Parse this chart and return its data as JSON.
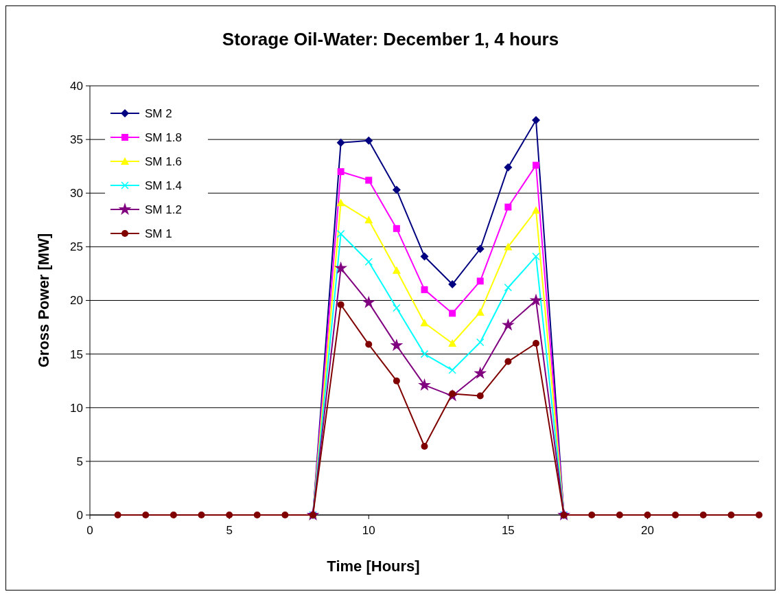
{
  "chart_data": {
    "type": "line",
    "title": "Storage Oil-Water: December 1, 4 hours",
    "xlabel": "Time [Hours]",
    "ylabel": "Gross Power [MW]",
    "x": [
      1,
      2,
      3,
      4,
      5,
      6,
      7,
      8,
      9,
      10,
      11,
      12,
      13,
      14,
      15,
      16,
      17,
      18,
      19,
      20,
      21,
      22,
      23,
      24
    ],
    "xlim": [
      0,
      24
    ],
    "xticks": [
      0,
      5,
      10,
      15,
      20
    ],
    "ylim": [
      0,
      40
    ],
    "yticks": [
      0,
      5,
      10,
      15,
      20,
      25,
      30,
      35,
      40
    ],
    "grid": "y",
    "legend": "top left",
    "series": [
      {
        "name": "SM 2",
        "color": "#000080",
        "marker": "diamond",
        "values": [
          null,
          null,
          null,
          null,
          null,
          null,
          null,
          0,
          34.7,
          34.9,
          30.3,
          24.1,
          21.5,
          24.8,
          32.4,
          36.8,
          0,
          null,
          null,
          null,
          null,
          null,
          null,
          null
        ]
      },
      {
        "name": "SM 1.8",
        "color": "#ff00ff",
        "marker": "square",
        "values": [
          null,
          null,
          null,
          null,
          null,
          null,
          null,
          0,
          32.0,
          31.2,
          26.7,
          21.0,
          18.8,
          21.8,
          28.7,
          32.6,
          0,
          null,
          null,
          null,
          null,
          null,
          null,
          null
        ]
      },
      {
        "name": "SM 1.6",
        "color": "#ffff00",
        "marker": "triangle",
        "values": [
          null,
          null,
          null,
          null,
          null,
          null,
          null,
          0,
          29.1,
          27.5,
          22.8,
          17.9,
          16.0,
          18.9,
          25.0,
          28.4,
          0,
          null,
          null,
          null,
          null,
          null,
          null,
          null
        ]
      },
      {
        "name": "SM 1.4",
        "color": "#00ffff",
        "marker": "cross",
        "values": [
          null,
          null,
          null,
          null,
          null,
          null,
          null,
          0,
          26.2,
          23.6,
          19.3,
          15.0,
          13.5,
          16.1,
          21.2,
          24.1,
          0,
          null,
          null,
          null,
          null,
          null,
          null,
          null
        ]
      },
      {
        "name": "SM 1.2",
        "color": "#800080",
        "marker": "star",
        "values": [
          null,
          null,
          null,
          null,
          null,
          null,
          null,
          0,
          23.0,
          19.8,
          15.8,
          12.1,
          11.1,
          13.2,
          17.7,
          20.0,
          0,
          null,
          null,
          null,
          null,
          null,
          null,
          null
        ]
      },
      {
        "name": "SM 1",
        "color": "#800000",
        "marker": "circle",
        "values": [
          0,
          0,
          0,
          0,
          0,
          0,
          0,
          0,
          19.6,
          15.9,
          12.5,
          6.4,
          11.3,
          11.1,
          14.3,
          16.0,
          0,
          0,
          0,
          0,
          0,
          0,
          0,
          0
        ]
      }
    ]
  }
}
